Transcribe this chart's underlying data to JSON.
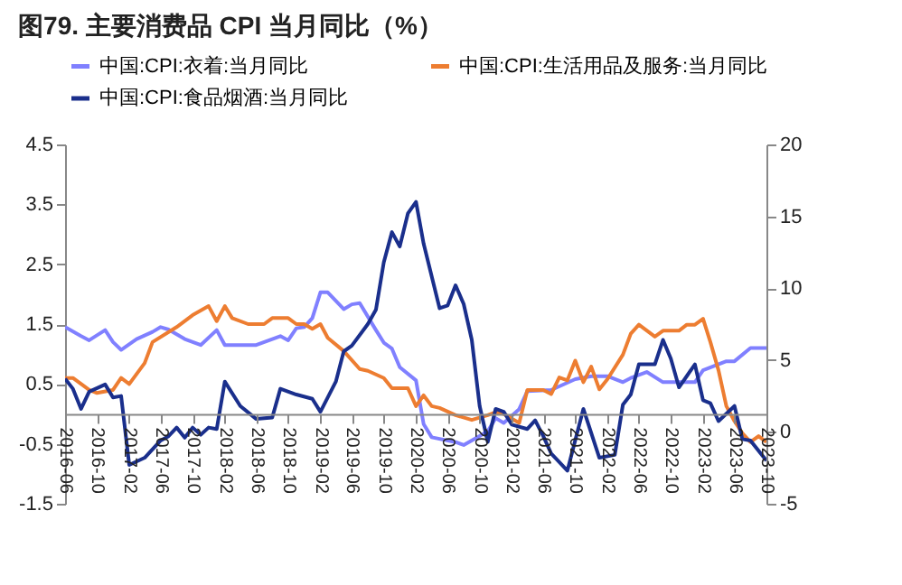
{
  "chart_data": {
    "type": "line",
    "title": "图79. 主要消费品 CPI 当月同比（%）",
    "xlim": [
      "2016-06",
      "2023-10"
    ],
    "xticks": [
      "2016-06",
      "2016-10",
      "2017-02",
      "2017-06",
      "2017-10",
      "2018-02",
      "2018-06",
      "2018-10",
      "2019-02",
      "2019-06",
      "2019-10",
      "2020-02",
      "2020-06",
      "2020-10",
      "2021-02",
      "2021-06",
      "2021-10",
      "2022-02",
      "2022-06",
      "2022-10",
      "2023-02",
      "2023-06",
      "2023-10"
    ],
    "ylim": [
      -1.5,
      4.5
    ],
    "yticks": [
      -1.5,
      -0.5,
      0.5,
      1.5,
      2.5,
      3.5,
      4.5
    ],
    "y2lim": [
      -5,
      20
    ],
    "y2ticks": [
      -5,
      0,
      5,
      10,
      15,
      20
    ],
    "grid": false,
    "legend": "top",
    "marker": "none",
    "line_style": "solid",
    "series": [
      {
        "name": "中国:CPI:衣着:当月同比",
        "color": "#8080ff",
        "x": [
          "2016-06",
          "2016-08",
          "2016-09",
          "2016-11",
          "2016-12",
          "2017-01",
          "2017-03",
          "2017-05",
          "2017-06",
          "2017-07",
          "2017-09",
          "2017-11",
          "2018-01",
          "2018-02",
          "2018-06",
          "2018-09",
          "2018-10",
          "2018-11",
          "2018-12",
          "2019-01",
          "2019-02",
          "2019-03",
          "2019-05",
          "2019-06",
          "2019-07",
          "2019-09",
          "2019-10",
          "2019-11",
          "2019-12",
          "2020-02",
          "2020-03",
          "2020-04",
          "2020-07",
          "2020-08",
          "2020-10",
          "2020-11",
          "2020-12",
          "2021-01",
          "2021-03",
          "2021-04",
          "2021-07",
          "2021-10",
          "2021-12",
          "2022-02",
          "2022-04",
          "2022-05",
          "2022-07",
          "2022-09",
          "2023-01",
          "2023-02",
          "2023-05",
          "2023-06",
          "2023-08",
          "2023-10"
        ],
        "values": [
          1.45,
          1.3,
          1.23,
          1.4,
          1.2,
          1.07,
          1.25,
          1.37,
          1.45,
          1.41,
          1.25,
          1.15,
          1.4,
          1.15,
          1.15,
          1.3,
          1.23,
          1.43,
          1.45,
          1.6,
          2.03,
          2.03,
          1.75,
          1.83,
          1.85,
          1.4,
          1.19,
          1.09,
          0.78,
          0.56,
          -0.17,
          -0.39,
          -0.47,
          -0.52,
          -0.37,
          -0.29,
          -0.07,
          -0.15,
          0.08,
          0.38,
          0.4,
          0.58,
          0.63,
          0.63,
          0.53,
          0.6,
          0.7,
          0.53,
          0.53,
          0.73,
          0.88,
          0.88,
          1.1,
          1.1
        ]
      },
      {
        "name": "中国:CPI:生活用品及服务:当月同比",
        "color": "#ed7d31",
        "x": [
          "2016-06",
          "2016-07",
          "2016-09",
          "2016-10",
          "2016-12",
          "2017-01",
          "2017-02",
          "2017-04",
          "2017-05",
          "2017-08",
          "2017-10",
          "2017-12",
          "2018-01",
          "2018-02",
          "2018-03",
          "2018-05",
          "2018-07",
          "2018-08",
          "2018-10",
          "2018-11",
          "2018-12",
          "2019-01",
          "2019-02",
          "2019-03",
          "2019-05",
          "2019-07",
          "2019-08",
          "2019-10",
          "2019-11",
          "2020-01",
          "2020-02",
          "2020-03",
          "2020-04",
          "2020-05",
          "2020-07",
          "2020-09",
          "2020-11",
          "2020-12",
          "2021-01",
          "2021-03",
          "2021-04",
          "2021-06",
          "2021-07",
          "2021-08",
          "2021-09",
          "2021-10",
          "2021-11",
          "2021-12",
          "2022-01",
          "2022-02",
          "2022-04",
          "2022-05",
          "2022-06",
          "2022-08",
          "2022-09",
          "2022-11",
          "2022-12",
          "2023-01",
          "2023-02",
          "2023-03",
          "2023-04",
          "2023-05",
          "2023-06",
          "2023-07",
          "2023-08",
          "2023-09",
          "2023-10"
        ],
        "values": [
          0.6,
          0.6,
          0.4,
          0.35,
          0.4,
          0.6,
          0.5,
          0.85,
          1.2,
          1.45,
          1.65,
          1.8,
          1.55,
          1.8,
          1.6,
          1.5,
          1.5,
          1.6,
          1.6,
          1.5,
          1.5,
          1.42,
          1.5,
          1.27,
          1.05,
          0.75,
          0.72,
          0.6,
          0.43,
          0.43,
          0.13,
          0.31,
          0.13,
          0.1,
          -0.02,
          -0.1,
          -0.02,
          0.03,
          0.0,
          -0.15,
          0.4,
          0.4,
          0.33,
          0.61,
          0.56,
          0.89,
          0.53,
          0.79,
          0.41,
          0.58,
          0.99,
          1.34,
          1.49,
          1.29,
          1.39,
          1.39,
          1.49,
          1.49,
          1.59,
          1.2,
          0.73,
          0.13,
          -0.12,
          -0.32,
          -0.47,
          -0.37,
          -0.47
        ]
      },
      {
        "name": "中国:CPI:食品烟酒:当月同比",
        "color": "#1a2f8c",
        "axis": "y2",
        "x": [
          "2016-06",
          "2016-07",
          "2016-08",
          "2016-09",
          "2016-11",
          "2016-12",
          "2017-01",
          "2017-02",
          "2017-04",
          "2017-06",
          "2017-07",
          "2017-08",
          "2017-09",
          "2017-10",
          "2017-11",
          "2017-12",
          "2018-01",
          "2018-02",
          "2018-04",
          "2018-06",
          "2018-08",
          "2018-09",
          "2018-11",
          "2019-01",
          "2019-02",
          "2019-04",
          "2019-05",
          "2019-06",
          "2019-08",
          "2019-09",
          "2019-10",
          "2019-11",
          "2019-12",
          "2020-01",
          "2020-02",
          "2020-03",
          "2020-05",
          "2020-06",
          "2020-07",
          "2020-08",
          "2020-09",
          "2020-10",
          "2020-11",
          "2020-12",
          "2021-01",
          "2021-02",
          "2021-04",
          "2021-05",
          "2021-06",
          "2021-07",
          "2021-09",
          "2021-11",
          "2022-01",
          "2022-03",
          "2022-04",
          "2022-05",
          "2022-06",
          "2022-08",
          "2022-09",
          "2022-10",
          "2022-11",
          "2023-01",
          "2023-02",
          "2023-03",
          "2023-04",
          "2023-06",
          "2023-07",
          "2023-08",
          "2023-10"
        ],
        "values": [
          3.7,
          3.0,
          1.6,
          2.8,
          3.3,
          2.4,
          2.5,
          -2.3,
          -1.8,
          -0.6,
          -0.3,
          0.3,
          -0.4,
          0.3,
          -0.2,
          0.3,
          0.2,
          3.5,
          1.8,
          0.9,
          1.0,
          3.0,
          2.6,
          2.3,
          1.4,
          3.5,
          5.6,
          6.0,
          7.5,
          8.5,
          11.8,
          13.9,
          12.9,
          15.2,
          16.0,
          13.1,
          8.6,
          8.8,
          10.2,
          8.9,
          6.4,
          1.8,
          -0.7,
          1.6,
          1.4,
          0.5,
          0.2,
          0.8,
          -0.3,
          -1.5,
          -2.7,
          1.6,
          -1.8,
          -1.6,
          1.9,
          2.6,
          4.7,
          4.7,
          6.4,
          5.1,
          3.1,
          4.7,
          2.2,
          2.0,
          0.75,
          1.8,
          -0.5,
          -0.6,
          -2.0
        ]
      }
    ]
  }
}
